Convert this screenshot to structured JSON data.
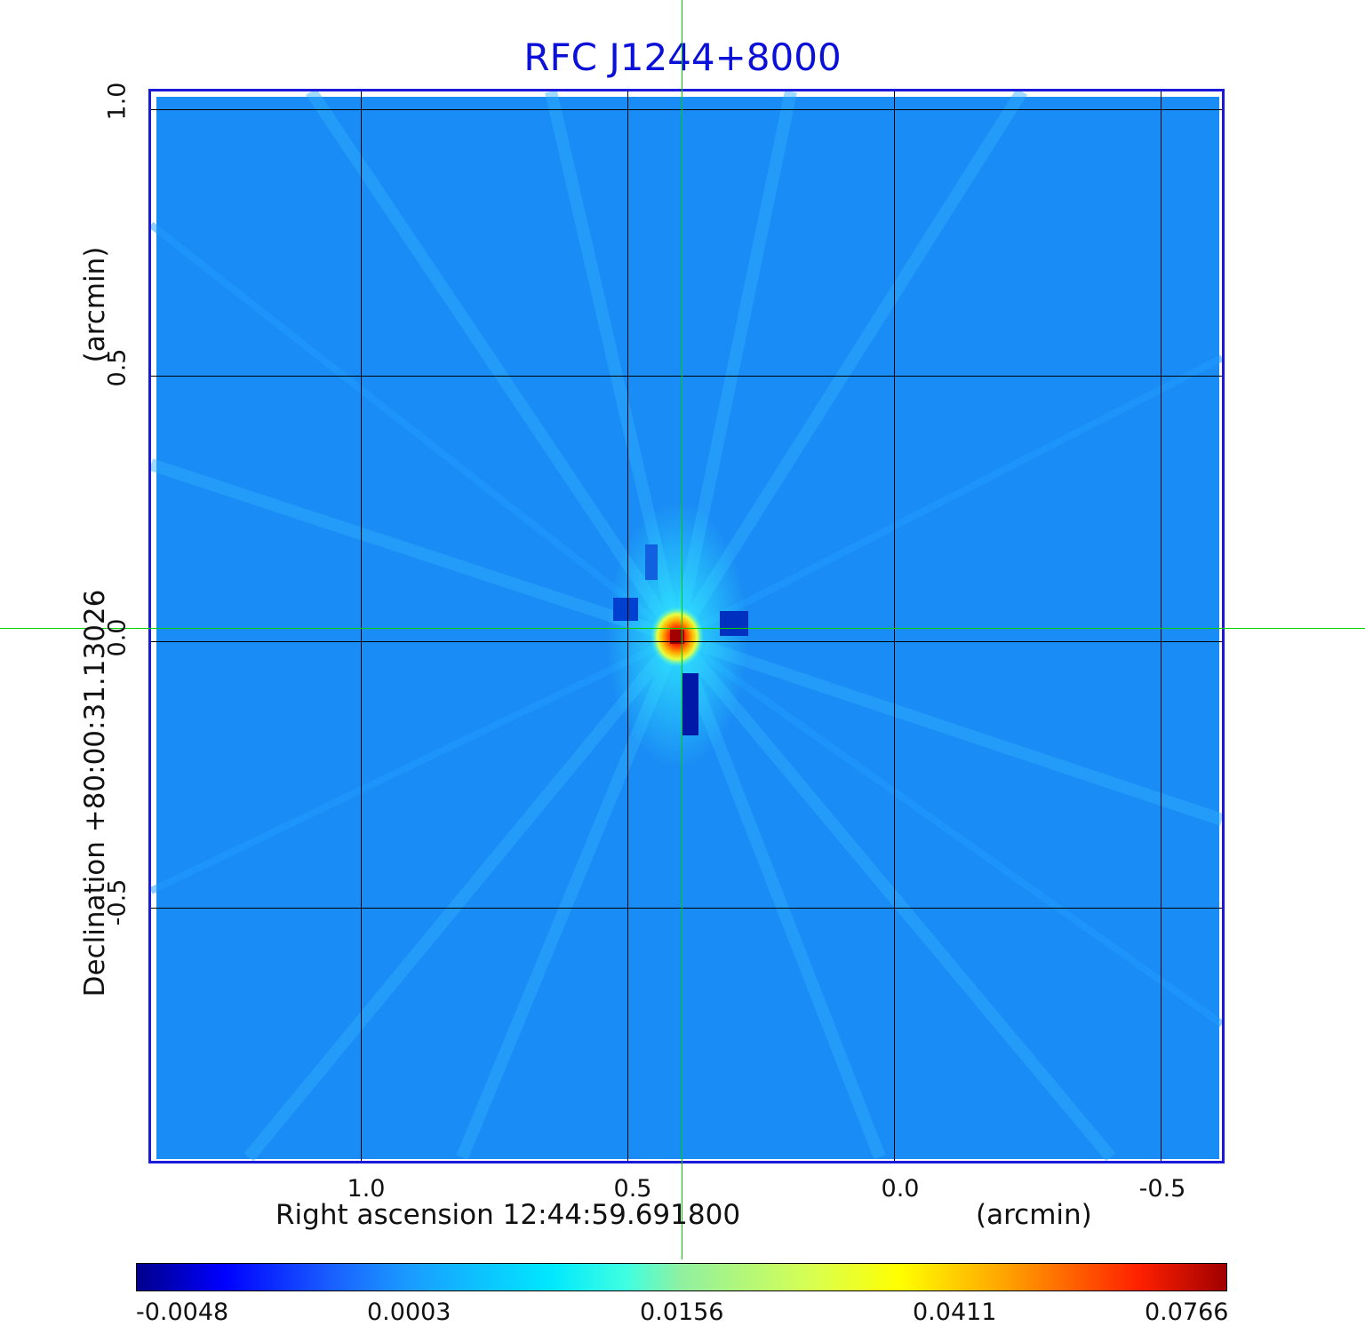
{
  "title": "RFC J1244+8000",
  "x_axis": {
    "label": "Right ascension  12:44:59.691800",
    "unit": "(arcmin)",
    "ticks": [
      "1.0",
      "0.5",
      "0.0",
      "-0.5"
    ]
  },
  "y_axis": {
    "label": "Declination  +80:00:31.13026",
    "unit": "(arcmin)",
    "ticks": [
      "1.0",
      "0.5",
      "0.0",
      "-0.5"
    ]
  },
  "colorbar": {
    "ticks": [
      "-0.0048",
      "0.0003",
      "0.0156",
      "0.0411",
      "0.0766"
    ]
  },
  "colors": {
    "title": "#0a10d8",
    "frame": "#1a1ad8",
    "background_field": "#1a8cf5",
    "crosshair": "#00d000"
  }
}
